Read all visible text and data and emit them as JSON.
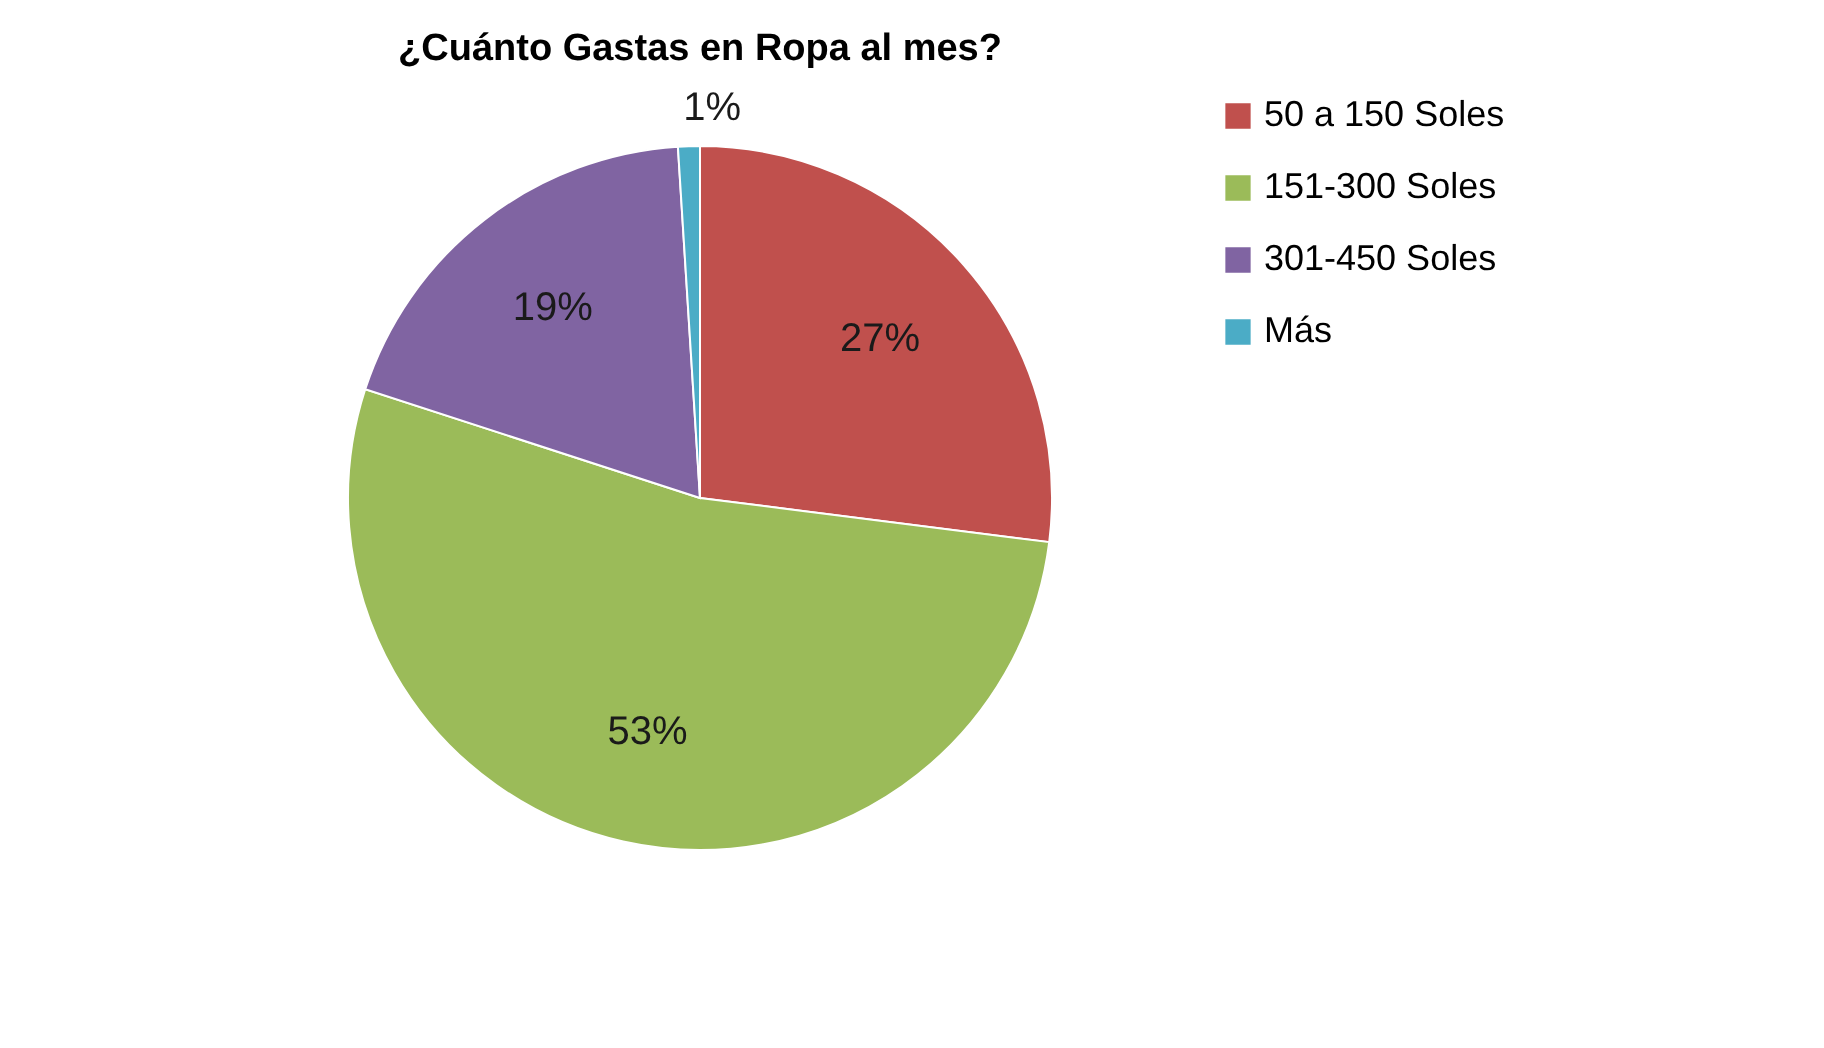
{
  "chart_data": {
    "type": "pie",
    "title": "¿Cuánto Gastas en Ropa al mes?",
    "categories": [
      "50 a 150 Soles",
      "151-300 Soles",
      "301-450 Soles",
      "Más"
    ],
    "values": [
      27,
      53,
      19,
      1
    ],
    "colors": [
      "#c0504d",
      "#9bbb59",
      "#8064a2",
      "#4bacc6"
    ],
    "value_labels": [
      "27%",
      "53%",
      "19%",
      "1%"
    ],
    "legend": "right"
  }
}
